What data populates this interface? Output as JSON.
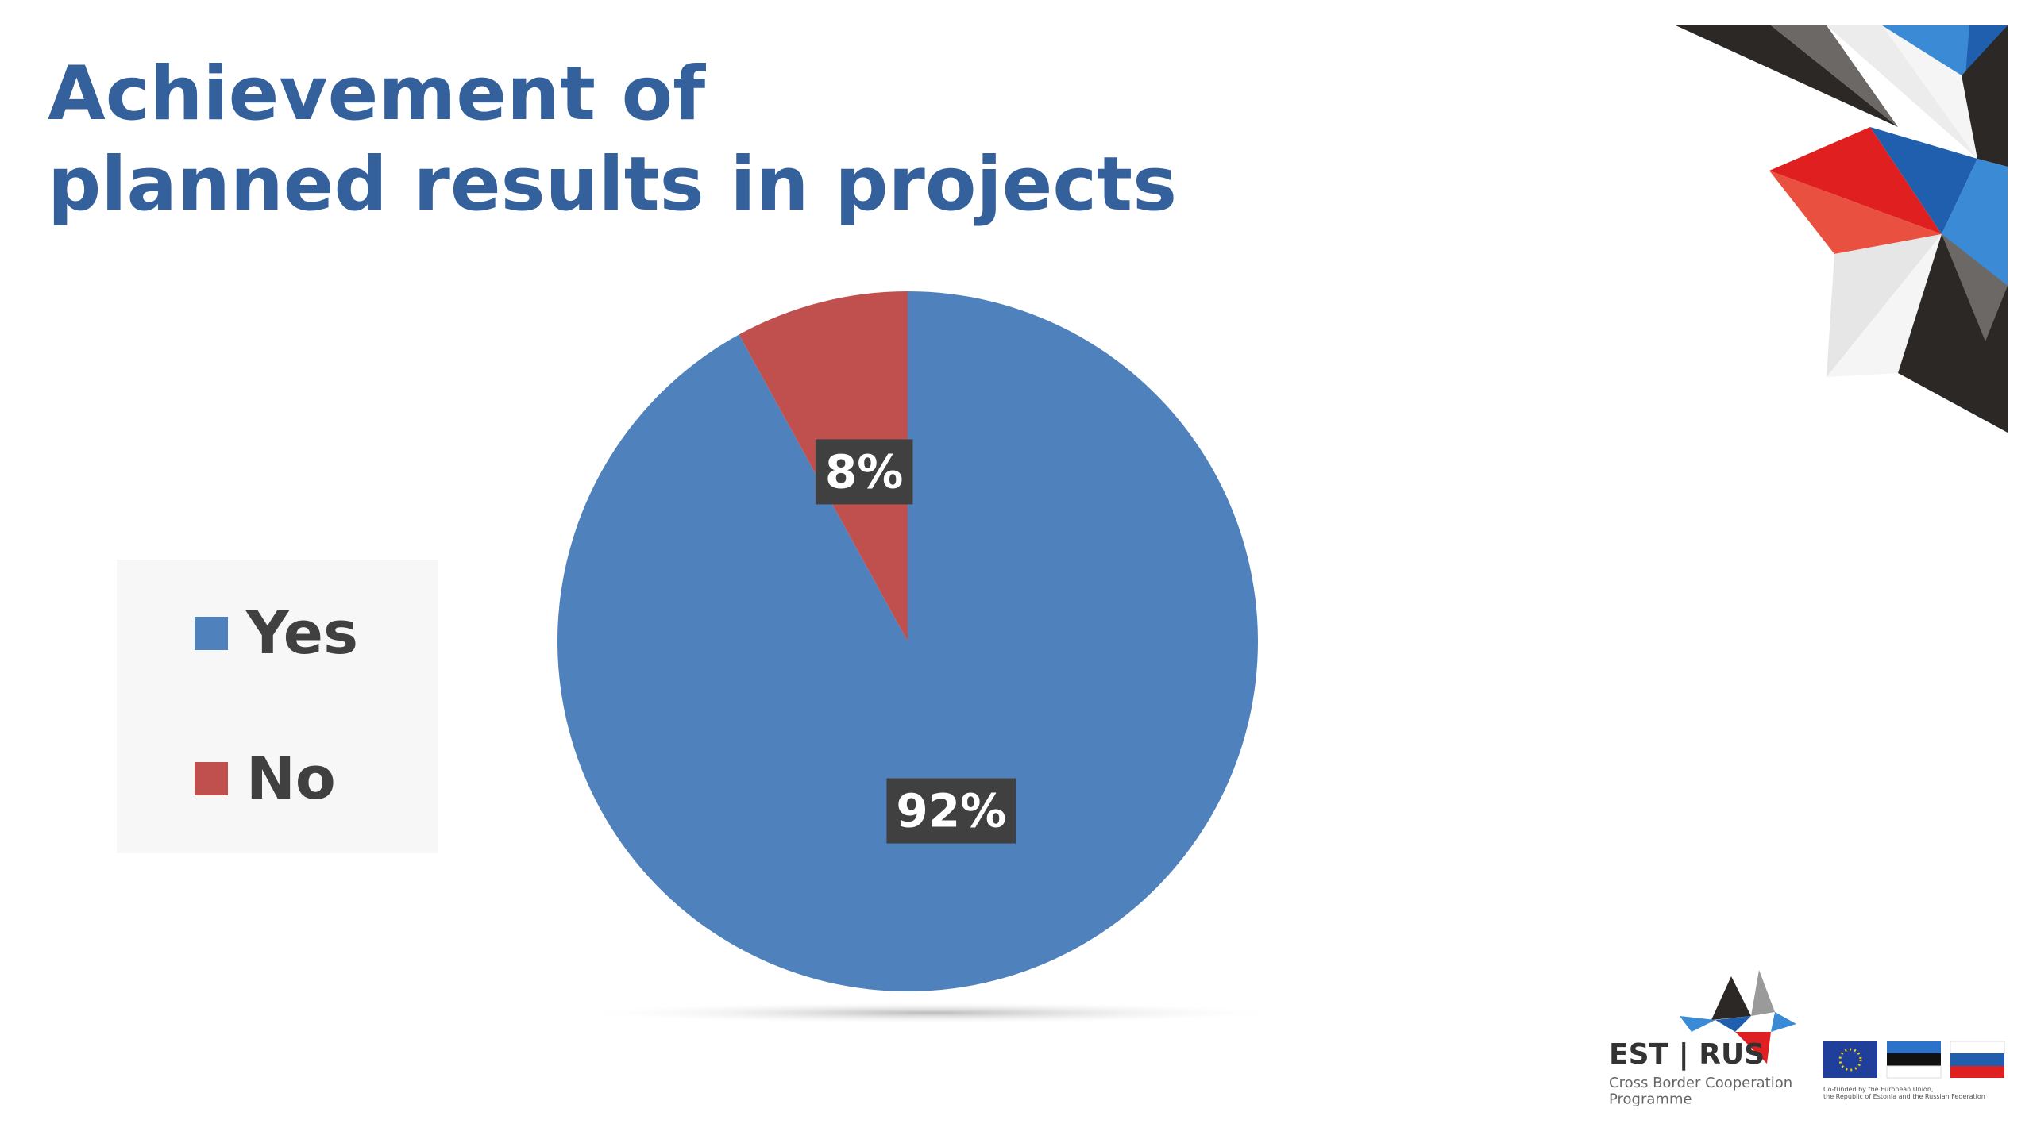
{
  "chart_data": {
    "type": "pie",
    "title": "Achievement of\nplanned results in projects",
    "categories": [
      "Yes",
      "No"
    ],
    "values": [
      92,
      8
    ],
    "value_labels": [
      "92%",
      "8%"
    ],
    "colors": [
      "#4f81bd",
      "#c0504d"
    ],
    "legend": "left"
  },
  "logo": {
    "name": "EST | RUS",
    "subtitle": "Cross Border Cooperation\nProgramme",
    "funding": "Co-funded by the European Union,\nthe Republic of Estonia and the Russian Federation"
  }
}
